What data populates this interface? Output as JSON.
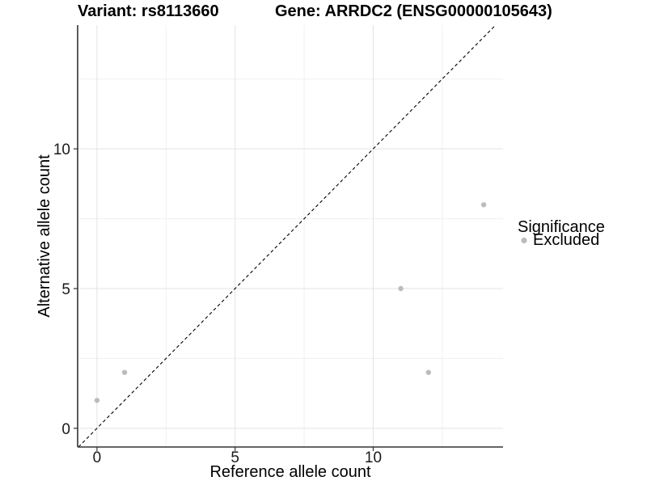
{
  "chart_data": {
    "type": "scatter",
    "title_left": "Variant: rs8113660",
    "title_right": "Gene: ARRDC2 (ENSG00000105643)",
    "xlabel": "Reference allele count",
    "ylabel": "Alternative allele count",
    "xlim": [
      -0.7,
      14.7
    ],
    "ylim": [
      -0.67,
      14.43
    ],
    "x_major_ticks": [
      0,
      5,
      10
    ],
    "y_major_ticks": [
      0,
      5,
      10
    ],
    "x_minor_gridlines": [
      2.5,
      7.5,
      12.5
    ],
    "y_minor_gridlines": [
      2.5,
      7.5,
      12.5
    ],
    "grid": true,
    "reference_line": {
      "type": "identity",
      "style": "dashed",
      "color": "#000000"
    },
    "series": [
      {
        "name": "Excluded",
        "color": "#bcbcbc",
        "points": [
          {
            "x": 0,
            "y": 1
          },
          {
            "x": 1,
            "y": 2
          },
          {
            "x": 11,
            "y": 5
          },
          {
            "x": 12,
            "y": 2
          },
          {
            "x": 14,
            "y": 8
          }
        ]
      }
    ],
    "legend": {
      "title": "Significance",
      "position": "right",
      "entries": [
        {
          "label": "Excluded",
          "color": "#bcbcbc"
        }
      ]
    },
    "colors": {
      "background": "#ffffff",
      "grid_major": "#e3e3e3",
      "grid_minor": "#f0f0f0",
      "axis_line": "#333333",
      "tick_mark": "#333333",
      "text": "#000000",
      "point": "#bcbcbc"
    }
  }
}
